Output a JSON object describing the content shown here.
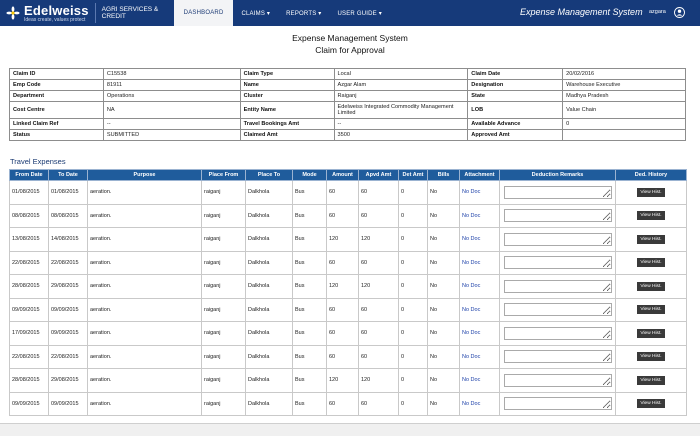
{
  "header": {
    "brand": "Edelweiss",
    "tagline": "Ideas create, values protect",
    "division": "AGRI SERVICES & CREDIT",
    "nav": [
      {
        "label": "DASHBOARD",
        "active": true
      },
      {
        "label": "CLAIMS ▾",
        "active": false
      },
      {
        "label": "REPORTS ▾",
        "active": false
      },
      {
        "label": "USER GUIDE ▾",
        "active": false
      }
    ],
    "app_title": "Expense Management System",
    "user": "azgara",
    "colors": {
      "nav_bg": "#163a7a",
      "table_header": "#1f5c9c"
    }
  },
  "page": {
    "title": "Expense Management System",
    "subtitle": "Claim for Approval"
  },
  "claim": {
    "rows": [
      [
        {
          "l": "Claim ID",
          "v": "C15538"
        },
        {
          "l": "Claim Type",
          "v": "Local"
        },
        {
          "l": "Claim Date",
          "v": "20/02/2016"
        }
      ],
      [
        {
          "l": "Emp Code",
          "v": "81911"
        },
        {
          "l": "Name",
          "v": "Azgar Alam"
        },
        {
          "l": "Designation",
          "v": "Warehouse Executive"
        }
      ],
      [
        {
          "l": "Department",
          "v": "Operations"
        },
        {
          "l": "Cluster",
          "v": "Raiganj"
        },
        {
          "l": "State",
          "v": "Madhya Pradesh"
        }
      ],
      [
        {
          "l": "Cost Centre",
          "v": "NA"
        },
        {
          "l": "Entity Name",
          "v": "Edelweiss Integrated Commodity Management Limited"
        },
        {
          "l": "LOB",
          "v": "Value Chain"
        }
      ],
      [
        {
          "l": "Linked Claim Ref",
          "v": "--"
        },
        {
          "l": "Travel Bookings Amt",
          "v": "--"
        },
        {
          "l": "Available Advance",
          "v": "0"
        }
      ],
      [
        {
          "l": "Status",
          "v": "SUBMITTED"
        },
        {
          "l": "Claimed Amt",
          "v": "3500"
        },
        {
          "l": "Approved Amt",
          "v": ""
        }
      ]
    ]
  },
  "travel": {
    "title": "Travel Expenses",
    "columns": [
      "From Date",
      "To Date",
      "Purpose",
      "Place From",
      "Place To",
      "Mode",
      "Amount",
      "Apvd Amt",
      "Det Amt",
      "Bills",
      "Attachment",
      "Deduction Remarks",
      "Ded. History"
    ],
    "button_label": "View Hist.",
    "rows": [
      {
        "from": "01/08/2015",
        "to": "01/08/2015",
        "purpose": "aeration.",
        "pfrom": "raiganj",
        "pto": "Dalkhola",
        "mode": "Bus",
        "amount": "60",
        "apvd": "60",
        "det": "0",
        "bills": "No",
        "att": "No Doc"
      },
      {
        "from": "08/08/2015",
        "to": "08/08/2015",
        "purpose": "aeration.",
        "pfrom": "raiganj",
        "pto": "Dalkhola",
        "mode": "Bus",
        "amount": "60",
        "apvd": "60",
        "det": "0",
        "bills": "No",
        "att": "No Doc"
      },
      {
        "from": "13/08/2015",
        "to": "14/08/2015",
        "purpose": "aeration.",
        "pfrom": "raiganj",
        "pto": "Dalkhola",
        "mode": "Bus",
        "amount": "120",
        "apvd": "120",
        "det": "0",
        "bills": "No",
        "att": "No Doc"
      },
      {
        "from": "22/08/2015",
        "to": "22/08/2015",
        "purpose": "aeration.",
        "pfrom": "raiganj",
        "pto": "Dalkhola",
        "mode": "Bus",
        "amount": "60",
        "apvd": "60",
        "det": "0",
        "bills": "No",
        "att": "No Doc"
      },
      {
        "from": "28/08/2015",
        "to": "29/08/2015",
        "purpose": "aeration.",
        "pfrom": "raiganj",
        "pto": "Dalkhola",
        "mode": "Bus",
        "amount": "120",
        "apvd": "120",
        "det": "0",
        "bills": "No",
        "att": "No Doc"
      },
      {
        "from": "09/09/2015",
        "to": "09/09/2015",
        "purpose": "aeration.",
        "pfrom": "raiganj",
        "pto": "Dalkhola",
        "mode": "Bus",
        "amount": "60",
        "apvd": "60",
        "det": "0",
        "bills": "No",
        "att": "No Doc"
      },
      {
        "from": "17/09/2015",
        "to": "09/09/2015",
        "purpose": "aeration.",
        "pfrom": "raiganj",
        "pto": "Dalkhola",
        "mode": "Bus",
        "amount": "60",
        "apvd": "60",
        "det": "0",
        "bills": "No",
        "att": "No Doc"
      },
      {
        "from": "22/08/2015",
        "to": "22/08/2015",
        "purpose": "aeration.",
        "pfrom": "raiganj",
        "pto": "Dalkhola",
        "mode": "Bus",
        "amount": "60",
        "apvd": "60",
        "det": "0",
        "bills": "No",
        "att": "No Doc"
      },
      {
        "from": "28/08/2015",
        "to": "29/08/2015",
        "purpose": "aeration.",
        "pfrom": "raiganj",
        "pto": "Dalkhola",
        "mode": "Bus",
        "amount": "120",
        "apvd": "120",
        "det": "0",
        "bills": "No",
        "att": "No Doc"
      },
      {
        "from": "09/09/2015",
        "to": "09/09/2015",
        "purpose": "aeration.",
        "pfrom": "raiganj",
        "pto": "Dalkhola",
        "mode": "Bus",
        "amount": "60",
        "apvd": "60",
        "det": "0",
        "bills": "No",
        "att": "No Doc"
      }
    ]
  }
}
